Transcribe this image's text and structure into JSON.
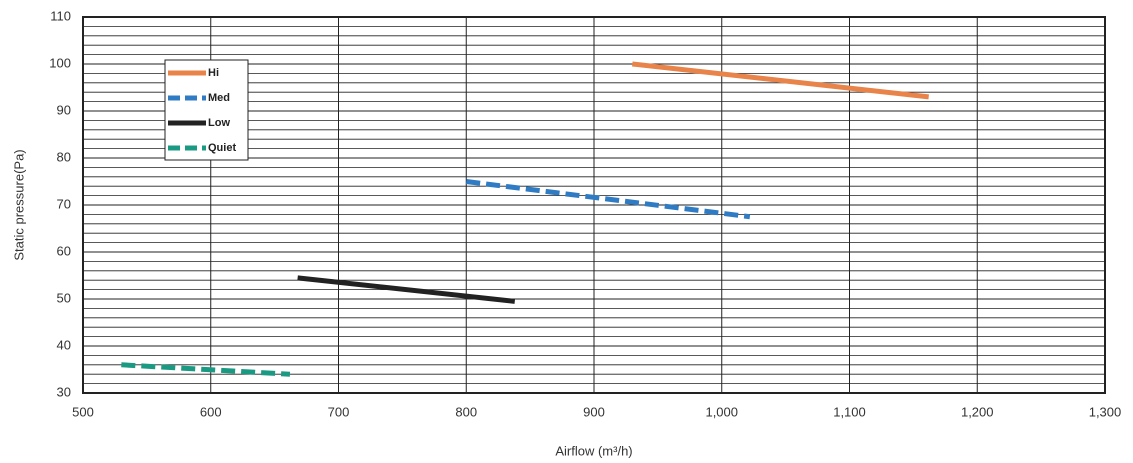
{
  "chart_data": {
    "type": "line",
    "x_label": "Airflow (m³/h)",
    "y_label": "Static pressure(Pa)",
    "xlim": [
      500,
      1300
    ],
    "ylim": [
      30,
      110
    ],
    "xticks": [
      500,
      600,
      700,
      800,
      900,
      {
        "value": 1000,
        "label": "1,000"
      },
      {
        "value": 1100,
        "label": "1,100"
      },
      {
        "value": 1200,
        "label": "1,200"
      },
      {
        "value": 1300,
        "label": "1,300"
      }
    ],
    "yticks": [
      30,
      40,
      50,
      60,
      70,
      80,
      90,
      100,
      110
    ],
    "grid": true,
    "legend": "upper left",
    "series": [
      {
        "name": "Hi",
        "color": "#e8834a",
        "style": "solid",
        "x": [
          930,
          1162
        ],
        "values": [
          100,
          93
        ]
      },
      {
        "name": "Med",
        "color": "#2f7cc4",
        "style": "dashed",
        "x": [
          800,
          1022
        ],
        "values": [
          75,
          67.5
        ]
      },
      {
        "name": "Low",
        "color": "#222222",
        "style": "solid",
        "x": [
          668,
          838
        ],
        "values": [
          54.5,
          49.5
        ]
      },
      {
        "name": "Quiet",
        "color": "#1a9a82",
        "style": "dashed",
        "x": [
          530,
          662
        ],
        "values": [
          36,
          34
        ]
      }
    ]
  }
}
